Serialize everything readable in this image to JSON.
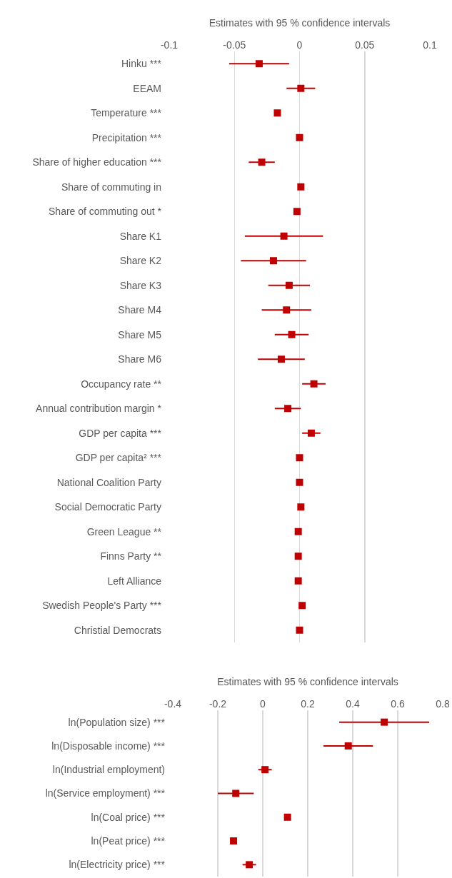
{
  "chart_data": [
    {
      "type": "scatter",
      "orientation": "horizontal",
      "xlabel": "Estimates with 95 % confidence intervals",
      "categories": [
        "Hinku ***",
        "EEAM",
        "Temperature ***",
        "Precipitation ***",
        "Share of higher education ***",
        "Share of commuting in",
        "Share of commuting out *",
        "Share K1",
        "Share K2",
        "Share K3",
        "Share M4",
        "Share M5",
        "Share M6",
        "Occupancy rate **",
        "Annual contribution margin *",
        "GDP per capita ***",
        "GDP per capita² ***",
        "National Coalition Party",
        "Social Democratic Party",
        "Green League **",
        "Finns Party **",
        "Left Alliance",
        "Swedish People's Party ***",
        "Christial Democrats"
      ],
      "values": [
        -0.031,
        0.001,
        -0.017,
        0,
        -0.029,
        0.001,
        -0.002,
        -0.012,
        -0.02,
        -0.008,
        -0.01,
        -0.006,
        -0.014,
        0.011,
        -0.009,
        0.009,
        0,
        0,
        0.001,
        -0.001,
        -0.001,
        -0.001,
        0.002,
        0
      ],
      "errors": [
        0.023,
        0.011,
        null,
        null,
        0.01,
        null,
        null,
        0.03,
        0.025,
        0.016,
        0.019,
        0.013,
        0.018,
        0.009,
        0.01,
        0.007,
        null,
        null,
        null,
        null,
        null,
        null,
        null,
        null
      ],
      "color": "#c00000",
      "marker": "square",
      "grid": "x",
      "xlim": [
        -0.1,
        0.1
      ],
      "xticks": [
        -0.1,
        -0.05,
        0,
        0.05,
        0.1
      ]
    },
    {
      "type": "scatter",
      "orientation": "horizontal",
      "xlabel": "Estimates with 95 % confidence intervals",
      "categories": [
        "ln(Population size) ***",
        "ln(Disposable income) ***",
        "ln(Industrial employment)",
        "ln(Service employment) ***",
        "ln(Coal price) ***",
        "ln(Peat price) ***",
        "ln(Electricity price) ***"
      ],
      "values": [
        0.54,
        0.38,
        0.01,
        -0.12,
        0.11,
        -0.13,
        -0.06
      ],
      "errors": [
        0.2,
        0.11,
        0.03,
        0.08,
        null,
        null,
        0.03
      ],
      "color": "#c00000",
      "marker": "square",
      "grid": "x",
      "xlim": [
        -0.4,
        0.8
      ],
      "xticks": [
        -0.4,
        -0.2,
        0,
        0.2,
        0.4,
        0.6,
        0.8
      ]
    }
  ]
}
